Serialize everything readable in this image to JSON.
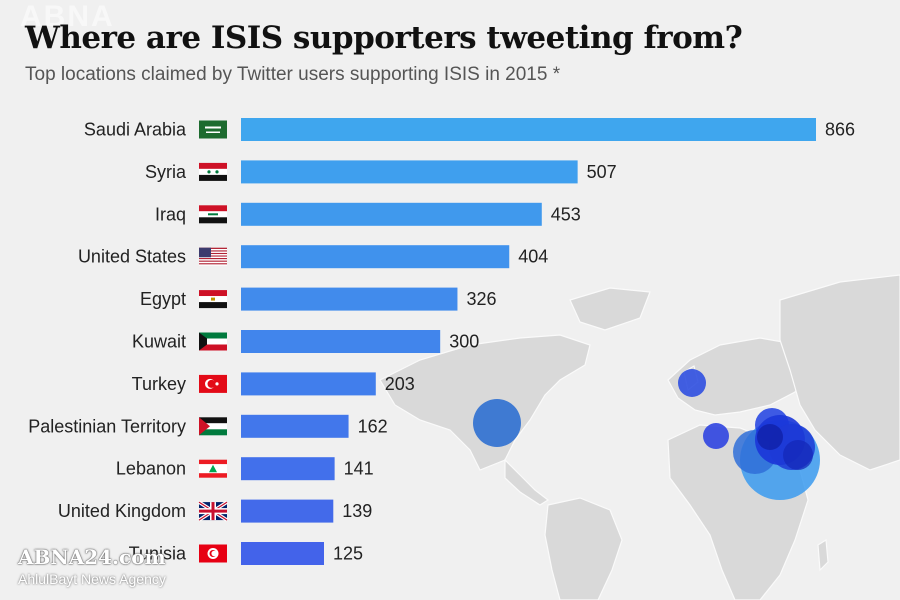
{
  "title": "Where are ISIS supporters tweeting from?",
  "subtitle": "Top locations claimed by Twitter users supporting ISIS in 2015 *",
  "watermark_top": "ABNA",
  "watermark_bottom": {
    "logo": "ABNA24.com",
    "caption": "AhlulBayt News Agency"
  },
  "colors": {
    "bar_start": "#3fa6ee",
    "bar_end": "#4363ea",
    "background": "#f0f0f0",
    "map_land": "#d9d9d9"
  },
  "chart_data": {
    "type": "bar",
    "orientation": "horizontal",
    "categories": [
      "Saudi Arabia",
      "Syria",
      "Iraq",
      "United States",
      "Egypt",
      "Kuwait",
      "Turkey",
      "Palestinian Territory",
      "Lebanon",
      "United Kingdom",
      "Tunisia"
    ],
    "values": [
      866,
      507,
      453,
      404,
      326,
      300,
      203,
      162,
      141,
      139,
      125
    ],
    "flags": [
      "saudi-arabia-flag-icon",
      "syria-flag-icon",
      "iraq-flag-icon",
      "united-states-flag-icon",
      "egypt-flag-icon",
      "kuwait-flag-icon",
      "turkey-flag-icon",
      "palestine-flag-icon",
      "lebanon-flag-icon",
      "united-kingdom-flag-icon",
      "tunisia-flag-icon"
    ],
    "xlim": [
      0,
      866
    ],
    "grid": false,
    "data_labels": true
  }
}
